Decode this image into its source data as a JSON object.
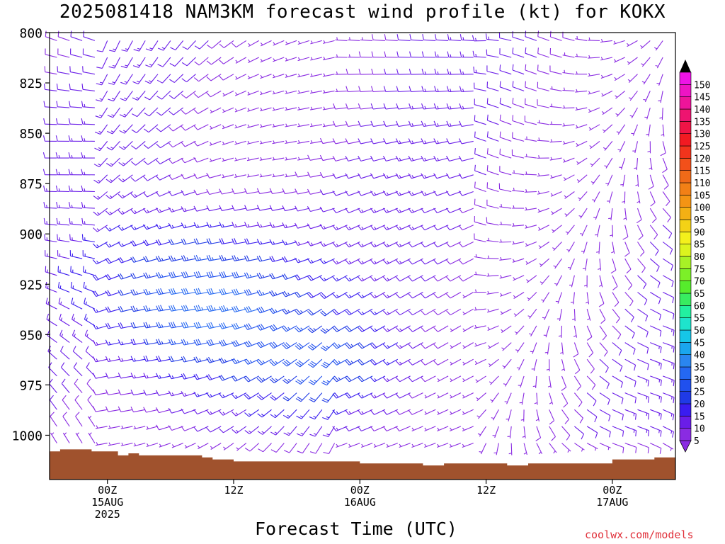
{
  "title": "2025081418 NAM3KM forecast wind profile (kt) for KOKX",
  "footer": {
    "credit": "coolwx.com/models"
  },
  "chart_data": {
    "type": "wind-barb-time-height",
    "title": "2025081418 NAM3KM forecast wind profile (kt) for KOKX",
    "xlabel": "Forecast Time (UTC)",
    "ylabel": "",
    "y_axis": {
      "ticks": [
        800,
        825,
        850,
        875,
        900,
        925,
        950,
        975,
        1000
      ],
      "range": [
        800,
        1022
      ],
      "direction": "pressure-down"
    },
    "x_axis": {
      "range_hours": [
        -5.5,
        54
      ],
      "ticks": [
        {
          "hour": 0,
          "lines": [
            "00Z",
            "15AUG",
            "2025"
          ]
        },
        {
          "hour": 12,
          "lines": [
            "12Z"
          ]
        },
        {
          "hour": 24,
          "lines": [
            "00Z",
            "16AUG"
          ]
        },
        {
          "hour": 36,
          "lines": [
            "12Z"
          ]
        },
        {
          "hour": 48,
          "lines": [
            "00Z",
            "17AUG"
          ]
        }
      ]
    },
    "colorbar": {
      "units": "kt",
      "labels": [
        "5",
        "10",
        "15",
        "20",
        "25",
        "30",
        "35",
        "40",
        "45",
        "50",
        "55",
        "60",
        "65",
        "70",
        "75",
        "80",
        "85",
        "90",
        "95",
        "100",
        "105",
        "110",
        "115",
        "120",
        "125",
        "130",
        "135",
        "140",
        "145",
        "150"
      ],
      "colors": [
        "#8a2be2",
        "#6a1de8",
        "#3a1cf0",
        "#1f3ae6",
        "#2050ee",
        "#2468f2",
        "#2a86f0",
        "#1aa6ee",
        "#16c6e8",
        "#1ee4cc",
        "#22f0a0",
        "#38ec60",
        "#56ec2c",
        "#7cf028",
        "#a8f226",
        "#dcf41e",
        "#f4f01c",
        "#f4d216",
        "#f4b014",
        "#f49414",
        "#f28016",
        "#f06a18",
        "#f2501a",
        "#f2341c",
        "#f21a22",
        "#f01446",
        "#ee1470",
        "#ee149a",
        "#ee14c4",
        "#ee14e6"
      ]
    },
    "surface_pressure": {
      "hour": [
        -5.5,
        -4.5,
        -3,
        -1.5,
        0,
        1,
        2,
        3,
        5,
        7,
        8,
        9,
        10,
        12,
        14,
        16,
        18,
        20,
        22,
        24,
        26,
        28,
        30,
        32,
        34,
        36,
        38,
        40,
        42,
        44,
        46,
        48,
        50,
        52,
        54
      ],
      "value": [
        1008,
        1007,
        1007,
        1008,
        1008,
        1010,
        1009,
        1010,
        1010,
        1010,
        1010,
        1011,
        1012,
        1013,
        1013,
        1013,
        1013,
        1013,
        1013,
        1014,
        1014,
        1014,
        1015,
        1014,
        1014,
        1014,
        1015,
        1014,
        1014,
        1014,
        1014,
        1012,
        1012,
        1011,
        1011
      ]
    },
    "barbs": {
      "level_step_hpa": 8.33,
      "time_step_hours": 1.2,
      "note": "speed (kt) and direction (deg) varying with time and height"
    }
  }
}
